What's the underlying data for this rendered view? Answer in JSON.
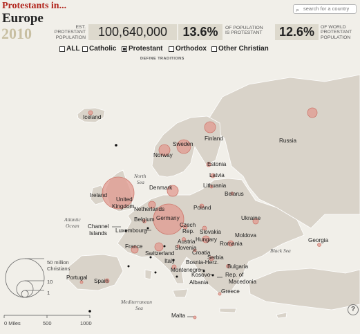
{
  "header": {
    "kicker": "Protestants in...",
    "region": "Europe",
    "year": "2010"
  },
  "search": {
    "placeholder": "search for a country"
  },
  "stats": {
    "population_label_1": "EST.",
    "population_label_2": "PROTESTANT",
    "population_label_3": "POPULATION",
    "population_value": "100,640,000",
    "percent_pop_value": "13.6%",
    "percent_pop_label_1": "OF POPULATION",
    "percent_pop_label_2": "IS PROTESTANT",
    "percent_world_value": "12.6%",
    "percent_world_label_1": "OF WORLD",
    "percent_world_label_2": "PROTESTANT",
    "percent_world_label_3": "POPULATION"
  },
  "filters": {
    "items": [
      {
        "label": "ALL",
        "checked": false
      },
      {
        "label": "Catholic",
        "checked": false
      },
      {
        "label": "Protestant",
        "checked": true
      },
      {
        "label": "Orthodox",
        "checked": false
      },
      {
        "label": "Other Christian",
        "checked": false
      }
    ],
    "define_label": "DEFINE TRADITIONS"
  },
  "legend": {
    "sizes": [
      "50 million",
      "Christians",
      "10",
      "1"
    ],
    "scale": [
      "0 Miles",
      "500",
      "1000"
    ]
  },
  "colors": {
    "bubble_fill": "#e0998f",
    "bubble_stroke": "#cd7a6f",
    "land": "#d9d3c9",
    "ocean": "#f1efe9",
    "accent_red": "#b2271f"
  },
  "countries": [
    "Iceland",
    "Norway",
    "Sweden",
    "Finland",
    "Russia",
    "Estonia",
    "Latvia",
    "Lithuania",
    "Belarus",
    "Denmark",
    "Ireland",
    "United",
    "Kingdom",
    "Netherlands",
    "Belgium",
    "Luxembourg",
    "Channel",
    "Islands",
    "Germany",
    "Poland",
    "Czech",
    "Rep.",
    "Slovakia",
    "Ukraine",
    "Moldova",
    "Austria",
    "Hungary",
    "Romania",
    "Slovenia",
    "Croatia",
    "France",
    "Switzerland",
    "Serbia",
    "Bosnia-Herz.",
    "Italy",
    "Montenegro",
    "Kosovo",
    "Bulgaria",
    "Albania",
    "Rep. of",
    "Macedonia",
    "Greece",
    "Georgia",
    "Portugal",
    "Spain",
    "Malta"
  ],
  "seas": {
    "north": [
      "North",
      "Sea"
    ],
    "atlantic": [
      "Atlantic",
      "Ocean"
    ],
    "black": "Black Sea",
    "med": [
      "Mediterranean",
      "Sea"
    ]
  },
  "help": "?"
}
